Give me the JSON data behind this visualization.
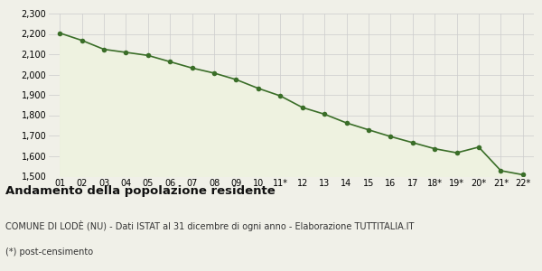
{
  "x_labels": [
    "01",
    "02",
    "03",
    "04",
    "05",
    "06",
    "07",
    "08",
    "09",
    "10",
    "11*",
    "12",
    "13",
    "14",
    "15",
    "16",
    "17",
    "18*",
    "19*",
    "20*",
    "21*",
    "22*"
  ],
  "y_values": [
    2204,
    2168,
    2124,
    2109,
    2094,
    2063,
    2032,
    2007,
    1975,
    1932,
    1895,
    1838,
    1805,
    1762,
    1728,
    1695,
    1665,
    1635,
    1615,
    1643,
    1527,
    1507
  ],
  "ylim": [
    1500,
    2300
  ],
  "yticks": [
    1500,
    1600,
    1700,
    1800,
    1900,
    2000,
    2100,
    2200,
    2300
  ],
  "line_color": "#3a6e28",
  "fill_color": "#eef2e0",
  "marker_color": "#3a6e28",
  "bg_color": "#f0f0e8",
  "plot_bg_color": "#f0f0e8",
  "grid_color": "#cccccc",
  "title": "Andamento della popolazione residente",
  "subtitle": "COMUNE DI LODÈ (NU) - Dati ISTAT al 31 dicembre di ogni anno - Elaborazione TUTTITALIA.IT",
  "footnote": "(*) post-censimento",
  "title_fontsize": 9.5,
  "subtitle_fontsize": 7.0,
  "footnote_fontsize": 7.0,
  "tick_fontsize": 7.0
}
